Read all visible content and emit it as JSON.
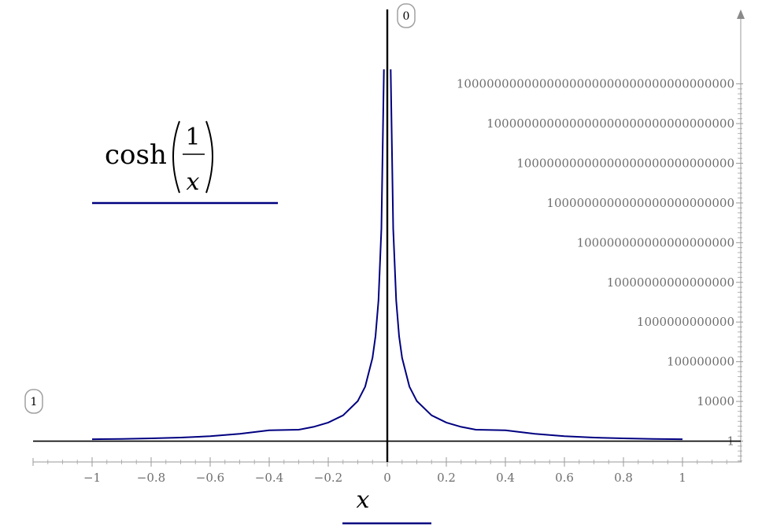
{
  "chart_data": {
    "type": "line",
    "formula": {
      "func": "cosh",
      "numerator": "1",
      "denominator": "x"
    },
    "xlabel": "x",
    "x_ticks": [
      "−1",
      "−0.8",
      "−0.6",
      "−0.4",
      "−0.2",
      "0",
      "0.2",
      "0.4",
      "0.6",
      "0.8",
      "1"
    ],
    "x_tick_values": [
      -1,
      -0.8,
      -0.6,
      -0.4,
      -0.2,
      0,
      0.2,
      0.4,
      0.6,
      0.8,
      1
    ],
    "xlim": [
      -1.2,
      1.2
    ],
    "y_scale": "log",
    "y_ticks": [
      "1",
      "10000",
      "100000000",
      "1000000000000",
      "10000000000000000",
      "100000000000000000000",
      "1000000000000000000000000",
      "10000000000000000000000000000",
      "100000000000000000000000000000000",
      "1000000000000000000000000000000000000"
    ],
    "y_tick_log10": [
      0,
      4,
      8,
      12,
      16,
      20,
      24,
      28,
      32,
      36
    ],
    "ylim_log10": [
      -2.1,
      43.5
    ],
    "series": [
      {
        "color": "#000080",
        "x": [
          -1,
          -0.9,
          -0.8,
          -0.7,
          -0.6,
          -0.5,
          -0.4,
          -0.3,
          -0.25,
          -0.2,
          -0.15,
          -0.1,
          -0.075,
          -0.05,
          -0.04,
          -0.03,
          -0.02,
          -0.0115,
          0.0115,
          0.02,
          0.03,
          0.04,
          0.05,
          0.075,
          0.1,
          0.15,
          0.2,
          0.25,
          0.3,
          0.4,
          0.5,
          0.6,
          0.7,
          0.8,
          0.9,
          1
        ],
        "y_log10": [
          0.188,
          0.226,
          0.28,
          0.362,
          0.495,
          0.741,
          1.092,
          1.148,
          1.437,
          1.871,
          2.594,
          4.042,
          5.49,
          8.385,
          10.557,
          14.175,
          21.414,
          37.461,
          37.461,
          21.414,
          14.175,
          10.557,
          8.385,
          5.49,
          4.042,
          2.594,
          1.871,
          1.437,
          1.148,
          1.092,
          0.741,
          0.495,
          0.362,
          0.28,
          0.226,
          0.188
        ]
      }
    ],
    "annotations": [
      {
        "label": "1",
        "note": "x-axis crosses y at this value"
      },
      {
        "label": "0",
        "note": "y-axis crosses x at this value"
      }
    ]
  }
}
